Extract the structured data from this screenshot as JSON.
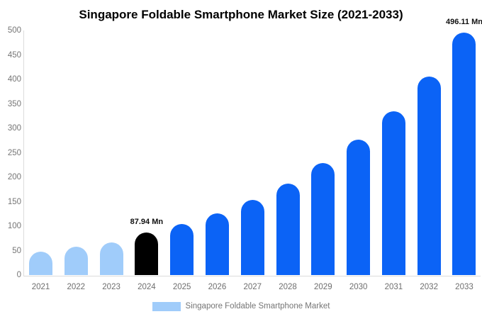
{
  "chart_data": {
    "type": "bar",
    "title": "Singapore Foldable Smartphone Market Size (2021-2033)",
    "xlabel": "",
    "ylabel": "",
    "unit": "Mn",
    "categories": [
      "2021",
      "2022",
      "2023",
      "2024",
      "2025",
      "2026",
      "2027",
      "2028",
      "2029",
      "2030",
      "2031",
      "2032",
      "2033"
    ],
    "values": [
      48,
      58,
      68,
      87.94,
      105,
      127,
      154,
      188,
      229,
      277,
      335,
      407,
      496.11
    ],
    "bar_colors": [
      "#a0ccfa",
      "#a0ccfa",
      "#a0ccfa",
      "#000000",
      "#0b63f6",
      "#0b63f6",
      "#0b63f6",
      "#0b63f6",
      "#0b63f6",
      "#0b63f6",
      "#0b63f6",
      "#0b63f6",
      "#0b63f6"
    ],
    "annotations": [
      {
        "index": 3,
        "text": "87.94 Mn"
      },
      {
        "index": 12,
        "text": "496.11 Mn"
      }
    ],
    "ylim": [
      0,
      500
    ],
    "yticks": [
      0,
      50,
      100,
      150,
      200,
      250,
      300,
      350,
      400,
      450,
      500
    ],
    "grid": false,
    "legend_position": "bottom",
    "legend": {
      "label": "Singapore Foldable Smartphone Market",
      "swatch_color": "#a0ccfa"
    },
    "colors": {
      "historical": "#a0ccfa",
      "base_year": "#000000",
      "forecast": "#0b63f6",
      "axis": "#dcdcdc",
      "tick_text": "#757575",
      "title_text": "#000000"
    }
  }
}
